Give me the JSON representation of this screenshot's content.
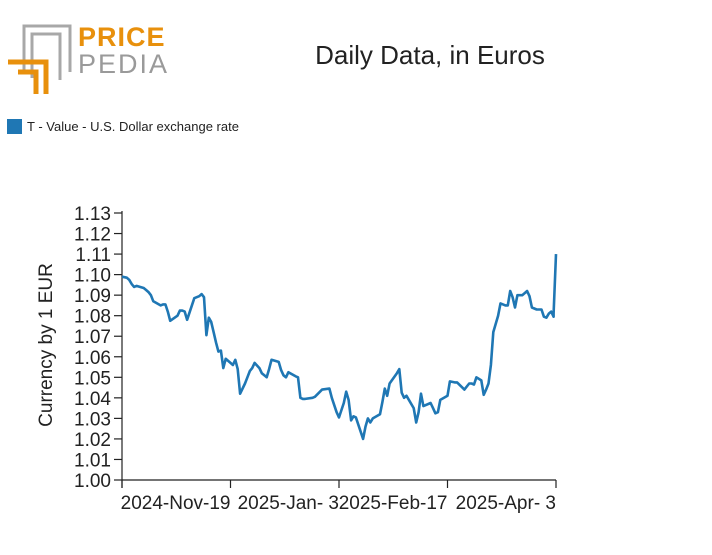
{
  "logo": {
    "word1": "PRICE",
    "word2": "PEDIA"
  },
  "chart_data": {
    "type": "line",
    "title": "Daily Data, in Euros",
    "ylabel": "Currency by 1 EUR",
    "xlabel": "",
    "ylim": [
      1.0,
      1.13
    ],
    "yticks": [
      "1.00",
      "1.01",
      "1.02",
      "1.03",
      "1.04",
      "1.05",
      "1.06",
      "1.07",
      "1.08",
      "1.09",
      "1.10",
      "1.11",
      "1.12",
      "1.13"
    ],
    "xticks": [
      {
        "label": "2024-Nov-19",
        "x": "2024-11-19"
      },
      {
        "label": "2025-Jan- 3",
        "x": "2025-01-03"
      },
      {
        "label": "2025-Feb-17",
        "x": "2025-02-17"
      },
      {
        "label": "2025-Apr- 3",
        "x": "2025-04-03"
      }
    ],
    "xlim": [
      "2024-10-05",
      "2025-04-03"
    ],
    "series": [
      {
        "name": "T - Value - U.S. Dollar exchange rate",
        "color": "#1f77b4",
        "points": [
          [
            "2024-10-05",
            1.099
          ],
          [
            "2024-10-07",
            1.0985
          ],
          [
            "2024-10-08",
            1.0975
          ],
          [
            "2024-10-09",
            1.0955
          ],
          [
            "2024-10-10",
            1.094
          ],
          [
            "2024-10-11",
            1.0945
          ],
          [
            "2024-10-14",
            1.0935
          ],
          [
            "2024-10-15",
            1.0925
          ],
          [
            "2024-10-16",
            1.0915
          ],
          [
            "2024-10-17",
            1.09
          ],
          [
            "2024-10-18",
            1.087
          ],
          [
            "2024-10-21",
            1.085
          ],
          [
            "2024-10-22",
            1.0855
          ],
          [
            "2024-10-23",
            1.0855
          ],
          [
            "2024-10-24",
            1.082
          ],
          [
            "2024-10-25",
            1.0775
          ],
          [
            "2024-10-28",
            1.08
          ],
          [
            "2024-10-29",
            1.0825
          ],
          [
            "2024-10-30",
            1.0825
          ],
          [
            "2024-10-31",
            1.082
          ],
          [
            "2024-11-01",
            1.078
          ],
          [
            "2024-11-04",
            1.0885
          ],
          [
            "2024-11-05",
            1.089
          ],
          [
            "2024-11-06",
            1.0895
          ],
          [
            "2024-11-07",
            1.0905
          ],
          [
            "2024-11-08",
            1.089
          ],
          [
            "2024-11-09",
            1.0705
          ],
          [
            "2024-11-10",
            1.079
          ],
          [
            "2024-11-11",
            1.077
          ],
          [
            "2024-11-12",
            1.072
          ],
          [
            "2024-11-13",
            1.067
          ],
          [
            "2024-11-14",
            1.0625
          ],
          [
            "2024-11-15",
            1.063
          ],
          [
            "2024-11-16",
            1.0545
          ],
          [
            "2024-11-17",
            1.059
          ],
          [
            "2024-11-19",
            1.057
          ],
          [
            "2024-11-20",
            1.056
          ],
          [
            "2024-11-21",
            1.0585
          ],
          [
            "2024-11-22",
            1.054
          ],
          [
            "2024-11-23",
            1.042
          ],
          [
            "2024-11-25",
            1.047
          ],
          [
            "2024-11-26",
            1.05
          ],
          [
            "2024-11-27",
            1.053
          ],
          [
            "2024-11-28",
            1.0545
          ],
          [
            "2024-11-29",
            1.057
          ],
          [
            "2024-12-01",
            1.0545
          ],
          [
            "2024-12-02",
            1.052
          ],
          [
            "2024-12-03",
            1.051
          ],
          [
            "2024-12-04",
            1.05
          ],
          [
            "2024-12-05",
            1.054
          ],
          [
            "2024-12-06",
            1.0585
          ],
          [
            "2024-12-09",
            1.0575
          ],
          [
            "2024-12-10",
            1.0535
          ],
          [
            "2024-12-11",
            1.051
          ],
          [
            "2024-12-12",
            1.05
          ],
          [
            "2024-12-13",
            1.0525
          ],
          [
            "2024-12-16",
            1.0505
          ],
          [
            "2024-12-17",
            1.05
          ],
          [
            "2024-12-18",
            1.04
          ],
          [
            "2024-12-19",
            1.0395
          ],
          [
            "2024-12-20",
            1.0395
          ],
          [
            "2024-12-23",
            1.04
          ],
          [
            "2024-12-24",
            1.0405
          ],
          [
            "2024-12-27",
            1.044
          ],
          [
            "2024-12-30",
            1.0445
          ],
          [
            "2024-12-31",
            1.04
          ],
          [
            "2025-01-02",
            1.033
          ],
          [
            "2025-01-03",
            1.0305
          ],
          [
            "2025-01-05",
            1.0375
          ],
          [
            "2025-01-06",
            1.043
          ],
          [
            "2025-01-07",
            1.039
          ],
          [
            "2025-01-08",
            1.029
          ],
          [
            "2025-01-09",
            1.031
          ],
          [
            "2025-01-10",
            1.0305
          ],
          [
            "2025-01-13",
            1.02
          ],
          [
            "2025-01-14",
            1.026
          ],
          [
            "2025-01-15",
            1.03
          ],
          [
            "2025-01-16",
            1.028
          ],
          [
            "2025-01-17",
            1.03
          ],
          [
            "2025-01-20",
            1.032
          ],
          [
            "2025-01-21",
            1.038
          ],
          [
            "2025-01-22",
            1.0445
          ],
          [
            "2025-01-23",
            1.041
          ],
          [
            "2025-01-24",
            1.047
          ],
          [
            "2025-01-27",
            1.052
          ],
          [
            "2025-01-28",
            1.054
          ],
          [
            "2025-01-29",
            1.0425
          ],
          [
            "2025-01-30",
            1.04
          ],
          [
            "2025-01-31",
            1.041
          ],
          [
            "2025-02-03",
            1.035
          ],
          [
            "2025-02-04",
            1.028
          ],
          [
            "2025-02-05",
            1.033
          ],
          [
            "2025-02-06",
            1.042
          ],
          [
            "2025-02-07",
            1.036
          ],
          [
            "2025-02-10",
            1.0375
          ],
          [
            "2025-02-11",
            1.035
          ],
          [
            "2025-02-12",
            1.0325
          ],
          [
            "2025-02-13",
            1.033
          ],
          [
            "2025-02-14",
            1.039
          ],
          [
            "2025-02-17",
            1.041
          ],
          [
            "2025-02-18",
            1.048
          ],
          [
            "2025-02-20",
            1.0475
          ],
          [
            "2025-02-21",
            1.0475
          ],
          [
            "2025-02-24",
            1.044
          ],
          [
            "2025-02-25",
            1.0455
          ],
          [
            "2025-02-26",
            1.047
          ],
          [
            "2025-02-27",
            1.047
          ],
          [
            "2025-02-28",
            1.0465
          ],
          [
            "2025-03-01",
            1.05
          ],
          [
            "2025-03-03",
            1.0485
          ],
          [
            "2025-03-04",
            1.0415
          ],
          [
            "2025-03-05",
            1.044
          ],
          [
            "2025-03-06",
            1.047
          ],
          [
            "2025-03-07",
            1.056
          ],
          [
            "2025-03-08",
            1.072
          ],
          [
            "2025-03-10",
            1.08
          ],
          [
            "2025-03-11",
            1.086
          ],
          [
            "2025-03-12",
            1.0855
          ],
          [
            "2025-03-13",
            1.085
          ],
          [
            "2025-03-14",
            1.085
          ],
          [
            "2025-03-15",
            1.092
          ],
          [
            "2025-03-16",
            1.089
          ],
          [
            "2025-03-17",
            1.084
          ],
          [
            "2025-03-18",
            1.09
          ],
          [
            "2025-03-20",
            1.09
          ],
          [
            "2025-03-21",
            1.091
          ],
          [
            "2025-03-22",
            1.092
          ],
          [
            "2025-03-23",
            1.0895
          ],
          [
            "2025-03-24",
            1.084
          ],
          [
            "2025-03-25",
            1.0835
          ],
          [
            "2025-03-26",
            1.083
          ],
          [
            "2025-03-27",
            1.083
          ],
          [
            "2025-03-28",
            1.083
          ],
          [
            "2025-03-29",
            1.0795
          ],
          [
            "2025-03-30",
            1.079
          ],
          [
            "2025-03-31",
            1.081
          ],
          [
            "2025-04-01",
            1.082
          ],
          [
            "2025-04-02",
            1.0795
          ],
          [
            "2025-04-02",
            1.081
          ],
          [
            "2025-04-03",
            1.11
          ]
        ]
      }
    ],
    "grid": false,
    "legend_position": "top-left"
  }
}
